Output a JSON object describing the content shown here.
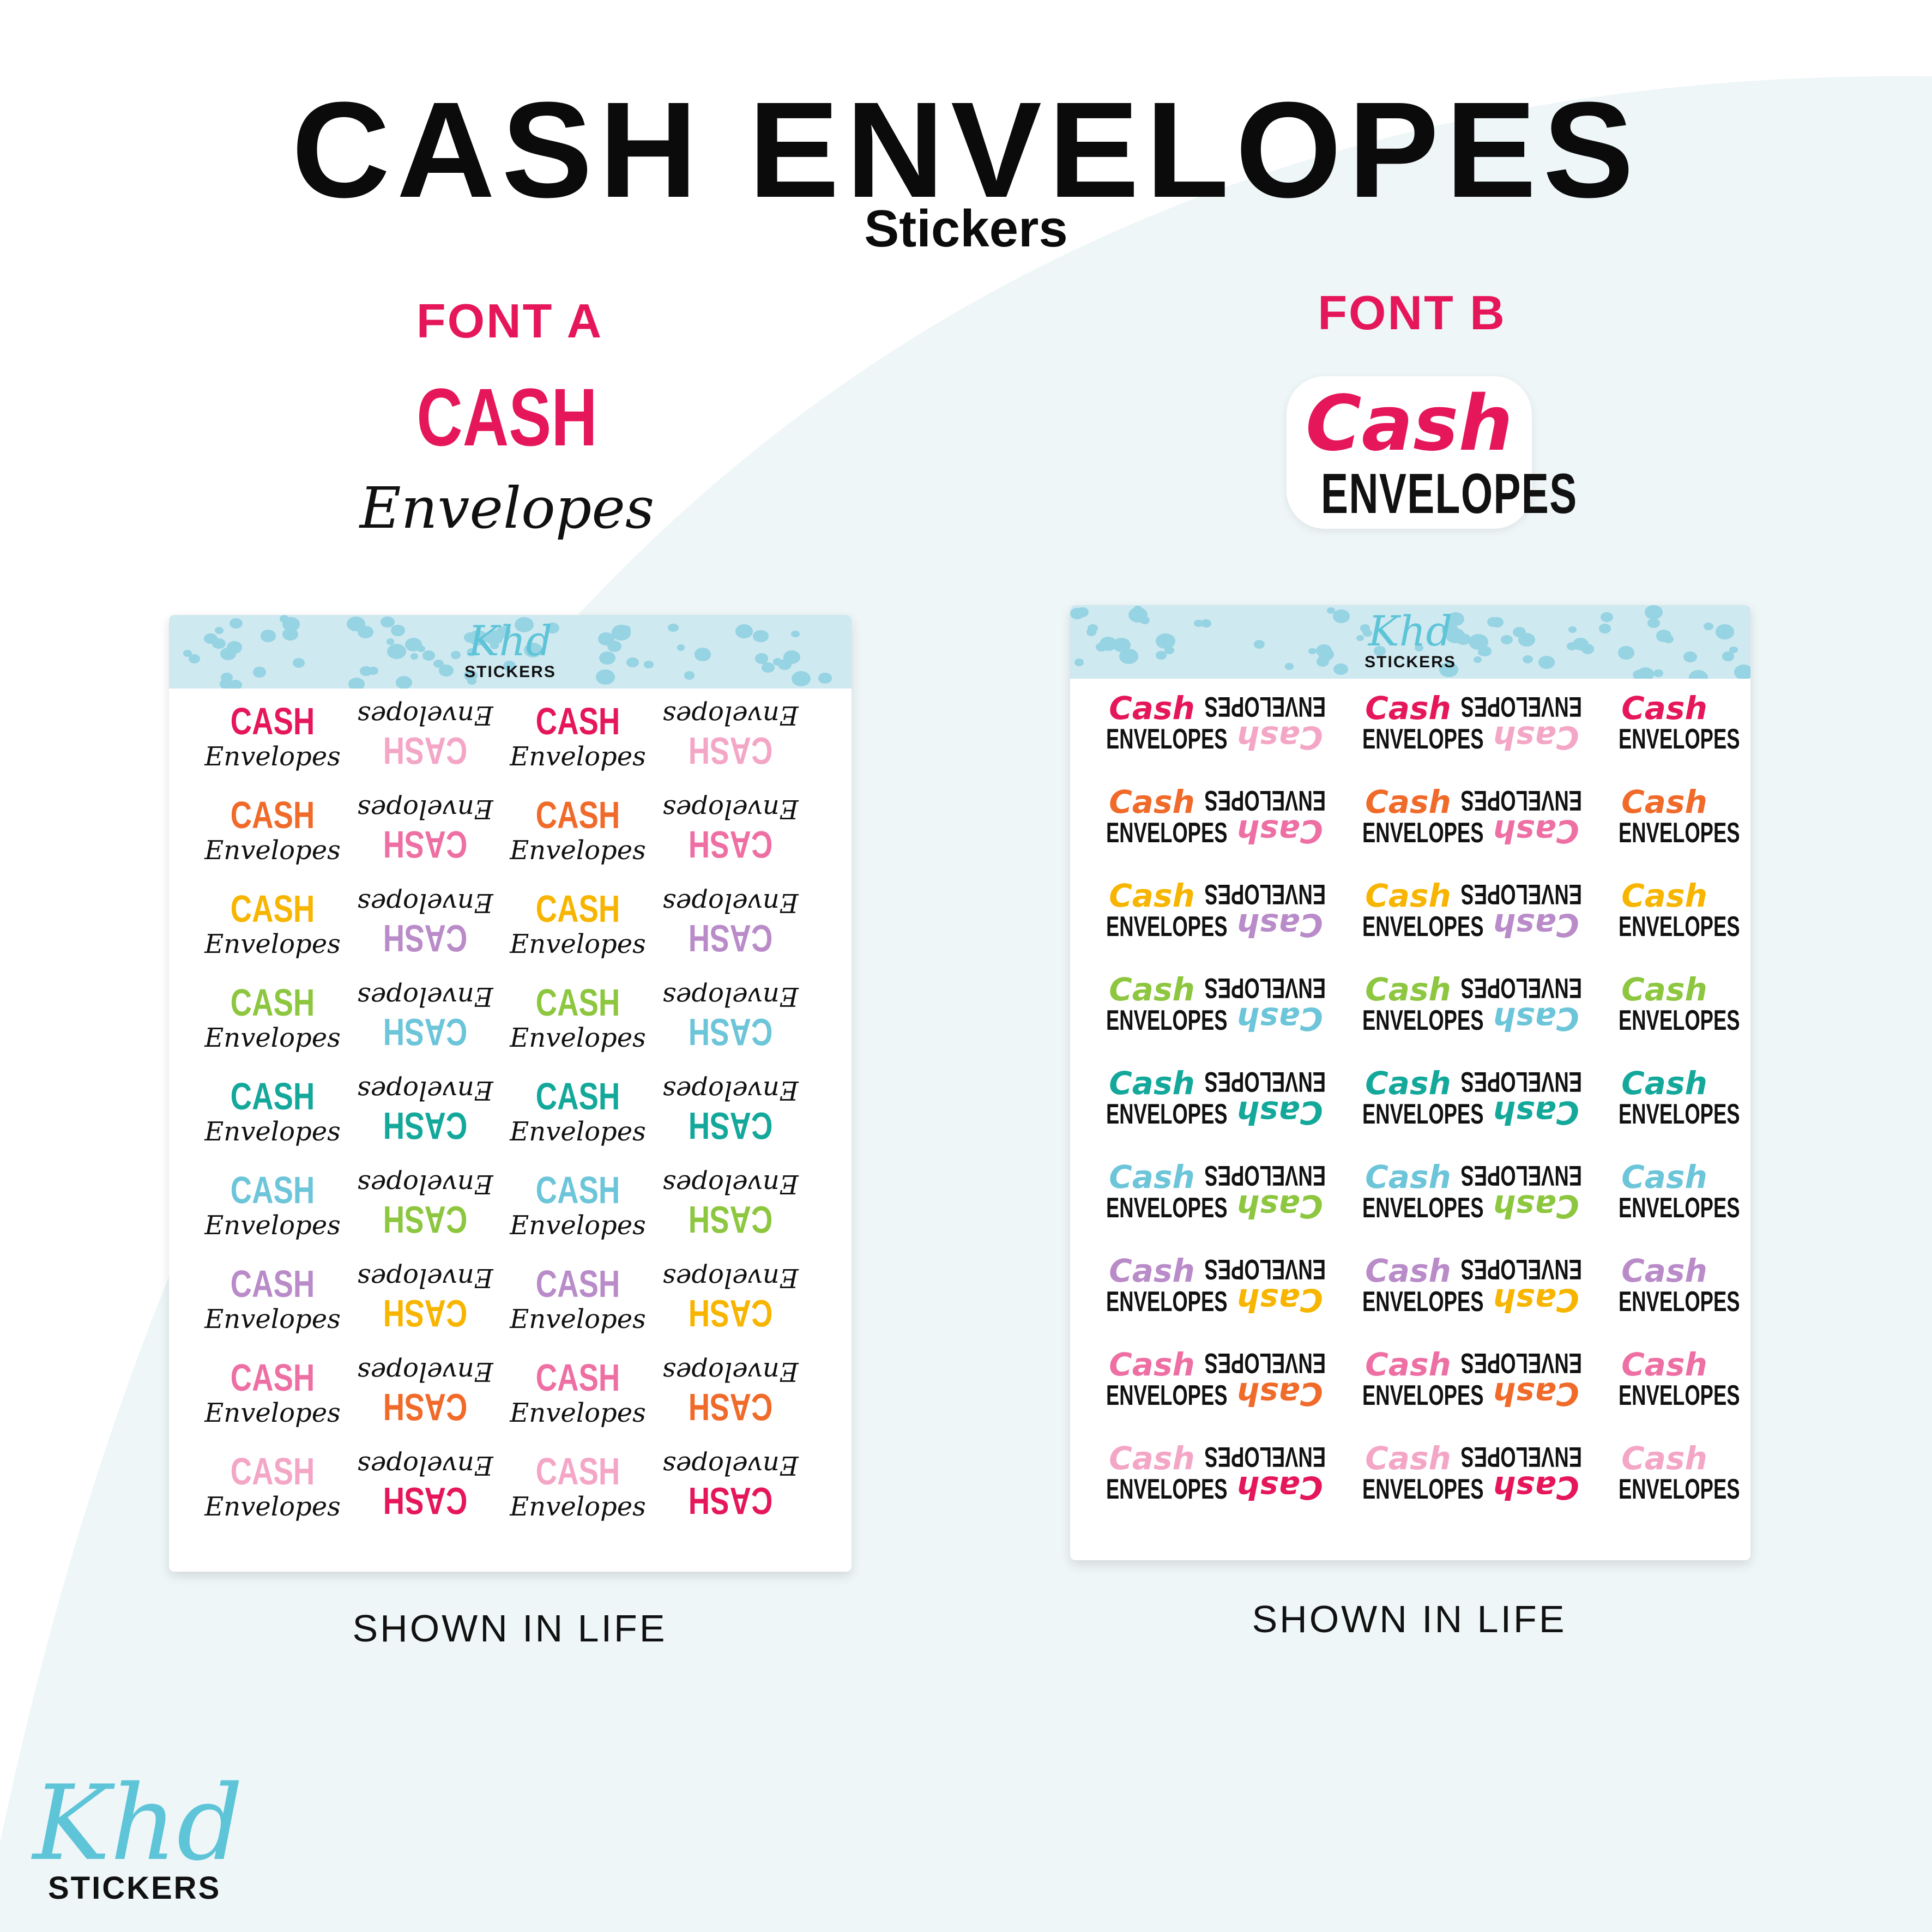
{
  "header": {
    "title": "CASH ENVELOPES",
    "subtitle": "Stickers"
  },
  "font_a": {
    "heading": "FONT A",
    "sample_line1": "CASH",
    "sample_line2": "Envelopes",
    "caption": "SHOWN IN LIFE"
  },
  "font_b": {
    "heading": "FONT B",
    "sample_line1": "Cash",
    "sample_line2": "ENVELOPES",
    "caption": "SHOWN IN LIFE"
  },
  "sheet_logo": {
    "script": "Khd",
    "word": "STICKERS"
  },
  "brand_logo": {
    "script": "Khd",
    "word": "STICKERS"
  },
  "colors": {
    "accent_pink": "#e5175a",
    "title_black": "#0b0b0b",
    "background_light": "#eef6f8",
    "curve_white": "#ffffff",
    "sheet_header": "#cfe9f0",
    "dot_blue": "#96d3e3",
    "logo_teal": "#5ec4d8"
  },
  "sheet_a": {
    "upright_colors": [
      "#e5175a",
      "#f06a2a",
      "#f7b500",
      "#8dc63f",
      "#14a89b",
      "#6cc5d9",
      "#b98cc9",
      "#ee6fa3",
      "#f4a6c6"
    ],
    "flipped_colors": [
      "#f4a6c6",
      "#ee6fa3",
      "#b98cc9",
      "#6cc5d9",
      "#14a89b",
      "#8dc63f",
      "#f7b500",
      "#f06a2a",
      "#e5175a"
    ]
  },
  "sheet_b": {
    "upright_colors": [
      "#e5175a",
      "#f06a2a",
      "#f7b500",
      "#8dc63f",
      "#14a89b",
      "#6cc5d9",
      "#b98cc9",
      "#ee6fa3",
      "#f4a6c6"
    ],
    "flipped_colors": [
      "#f4a6c6",
      "#ee6fa3",
      "#b98cc9",
      "#6cc5d9",
      "#14a89b",
      "#8dc63f",
      "#f7b500",
      "#f06a2a",
      "#e5175a"
    ]
  }
}
